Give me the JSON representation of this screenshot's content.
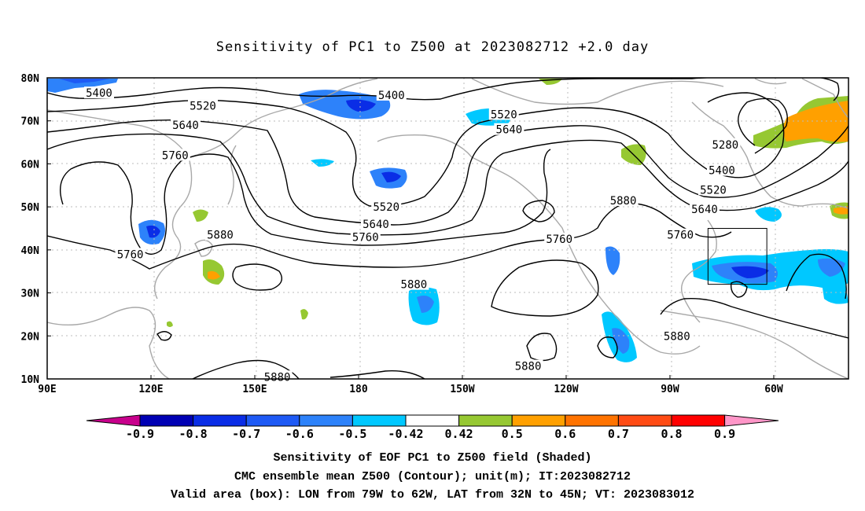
{
  "title": "Sensitivity of PC1 to Z500 at 2023082712 +2.0 day",
  "map": {
    "lat_labels": [
      "80N",
      "70N",
      "60N",
      "50N",
      "40N",
      "30N",
      "20N",
      "10N"
    ],
    "lon_labels": [
      "90E",
      "120E",
      "150E",
      "180",
      "150W",
      "120W",
      "90W",
      "60W"
    ],
    "contour_labels": [
      {
        "text": "5400",
        "lon": 105,
        "lat": 76.5
      },
      {
        "text": "5400",
        "lon": 189.5,
        "lat": 76
      },
      {
        "text": "5520",
        "lon": 135,
        "lat": 73.5
      },
      {
        "text": "5520",
        "lon": 222,
        "lat": 71.5
      },
      {
        "text": "5640",
        "lon": 130,
        "lat": 69
      },
      {
        "text": "5640",
        "lon": 223.5,
        "lat": 68
      },
      {
        "text": "5760",
        "lon": 127,
        "lat": 62
      },
      {
        "text": "5520",
        "lon": 188,
        "lat": 50
      },
      {
        "text": "5640",
        "lon": 185,
        "lat": 46
      },
      {
        "text": "5760",
        "lon": 182,
        "lat": 43
      },
      {
        "text": "5880",
        "lon": 140,
        "lat": 43.5
      },
      {
        "text": "5760",
        "lon": 114,
        "lat": 39
      },
      {
        "text": "5760",
        "lon": 238,
        "lat": 42.5
      },
      {
        "text": "5880",
        "lon": 196,
        "lat": 32
      },
      {
        "text": "5880",
        "lon": 256.5,
        "lat": 51.5
      },
      {
        "text": "5880",
        "lon": 229,
        "lat": 13
      },
      {
        "text": "5880",
        "lon": 156.5,
        "lat": 10.5
      },
      {
        "text": "5880",
        "lon": 272,
        "lat": 20
      },
      {
        "text": "5280",
        "lon": 286,
        "lat": 64.5
      },
      {
        "text": "5400",
        "lon": 285,
        "lat": 58.5
      },
      {
        "text": "5520",
        "lon": 282.5,
        "lat": 54
      },
      {
        "text": "5640",
        "lon": 280,
        "lat": 49.5
      },
      {
        "text": "5760",
        "lon": 273,
        "lat": 43.5
      }
    ],
    "valid_box": {
      "lon_min": 281,
      "lon_max": 298,
      "lat_min": 32,
      "lat_max": 45
    }
  },
  "colorbar": {
    "labels": [
      "-0.9",
      "-0.8",
      "-0.7",
      "-0.6",
      "-0.5",
      "-0.42",
      "0.42",
      "0.5",
      "0.6",
      "0.7",
      "0.8",
      "0.9"
    ],
    "colors": [
      "#0000b4",
      "#0a2de6",
      "#1e5af5",
      "#2d82fa",
      "#00c8ff",
      "#ffffff",
      "#96c832",
      "#ffa000",
      "#ff7300",
      "#ff4b14",
      "#ff0000"
    ],
    "low_color": "#c8008c",
    "high_color": "#ff96c8"
  },
  "captions": {
    "line1": "Sensitivity of EOF PC1 to Z500 field (Shaded)",
    "line2": "CMC ensemble mean Z500 (Contour); unit(m); IT:2023082712",
    "line3": "Valid area (box): LON from 79W to 62W, LAT from 32N to 45N; VT: 2023083012"
  }
}
